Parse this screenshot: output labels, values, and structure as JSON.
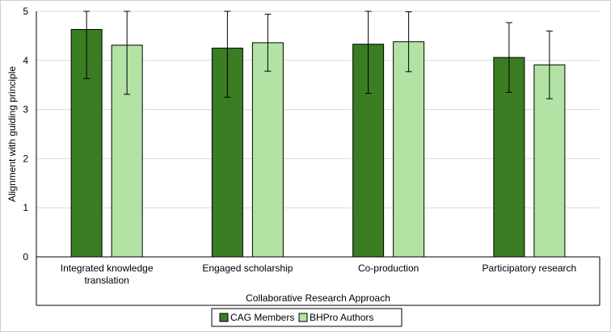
{
  "chart_data": {
    "type": "bar",
    "title": "",
    "xlabel": "Collaborative Research Approach",
    "ylabel": "Alignment with guiding principle",
    "ylim": [
      0,
      5
    ],
    "yticks": [
      "0",
      "1",
      "2",
      "3",
      "4",
      "5"
    ],
    "grid": true,
    "legend_position": "bottom",
    "categories": [
      [
        "Integrated knowledge",
        "translation"
      ],
      [
        "Engaged scholarship"
      ],
      [
        "Co-production"
      ],
      [
        "Participatory research"
      ]
    ],
    "series": [
      {
        "name": "CAG Members",
        "color": "#3a7d22",
        "values": [
          4.63,
          4.25,
          4.33,
          4.06
        ],
        "error": [
          1.0,
          1.0,
          1.0,
          0.71
        ]
      },
      {
        "name": "BHPro Authors",
        "color": "#b3e3a4",
        "values": [
          4.31,
          4.36,
          4.38,
          3.91
        ],
        "error": [
          1.0,
          0.58,
          0.61,
          0.69
        ]
      }
    ]
  }
}
